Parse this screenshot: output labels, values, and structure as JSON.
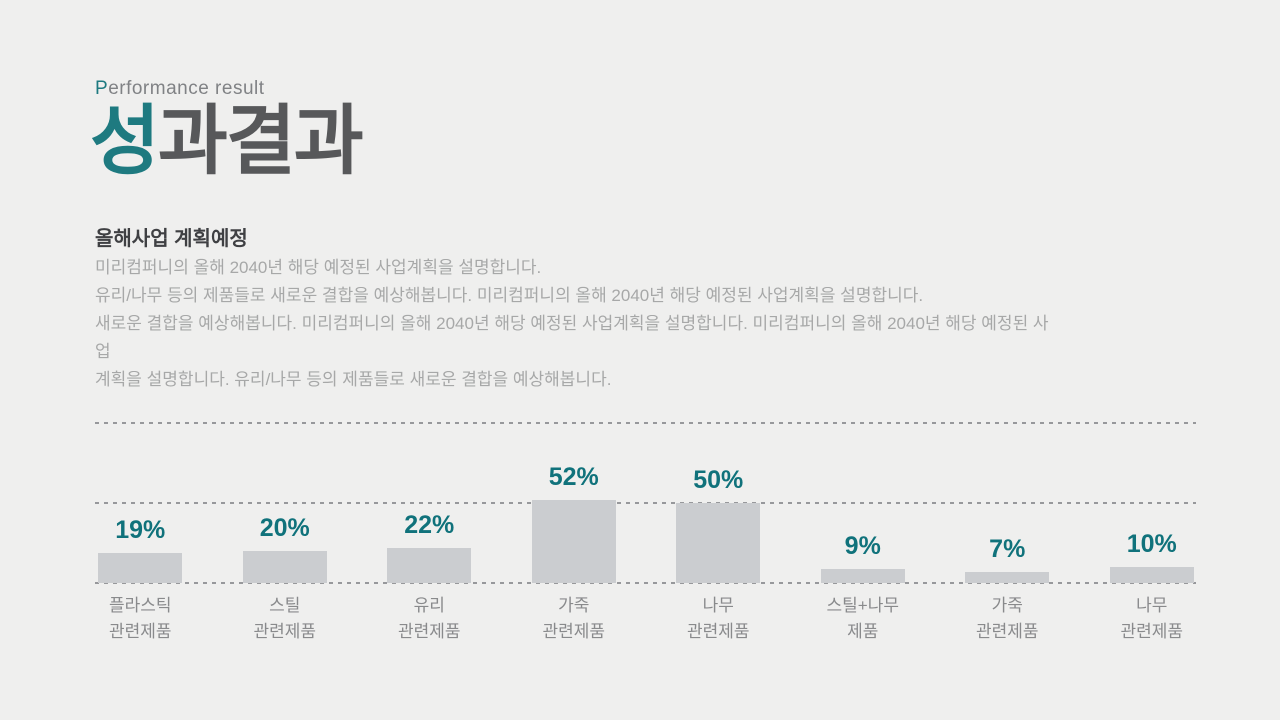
{
  "colors": {
    "bg": "#efefee",
    "accent": "#1e7a80",
    "eyebrow": "#808285",
    "title": "#57585a",
    "subtitle": "#3f4043",
    "body": "#a7a8a8",
    "grid": "#97989b",
    "bar": "#cbcdd0",
    "value": "#10727b",
    "label": "#898a8c"
  },
  "header": {
    "eyebrow_accent": "P",
    "eyebrow_rest": "erformance result",
    "title_accent": "성",
    "title_rest": "과결과"
  },
  "section": {
    "subtitle": "올해사업 계획예정",
    "body": "미리컴퍼니의 올해 2040년 해당 예정된 사업계획을 설명합니다.\n유리/나무 등의 제품들로 새로운 결합을 예상해봅니다. 미리컴퍼니의 올해 2040년 해당 예정된 사업계획을 설명합니다.\n새로운 결합을 예상해봅니다. 미리컴퍼니의 올해 2040년 해당 예정된 사업계획을 설명합니다. 미리컴퍼니의 올해 2040년 해당 예정된 사\n업\n계획을 설명합니다. 유리/나무 등의 제품들로 새로운 결합을 예상해봅니다."
  },
  "chart_data": {
    "type": "bar",
    "categories": [
      "플라스틱\n관련제품",
      "스틸\n관련제품",
      "유리\n관련제품",
      "가죽\n관련제품",
      "나무\n관련제품",
      "스틸+나무\n제품",
      "가죽\n관련제품",
      "나무\n관련제품"
    ],
    "values": [
      19,
      20,
      22,
      52,
      50,
      9,
      7,
      10
    ],
    "value_suffix": "%",
    "title": "",
    "xlabel": "",
    "ylabel": "",
    "ylim": [
      0,
      100
    ],
    "gridlines_pct": [
      0,
      50,
      100
    ],
    "grid": "dashed",
    "legend": "none"
  }
}
